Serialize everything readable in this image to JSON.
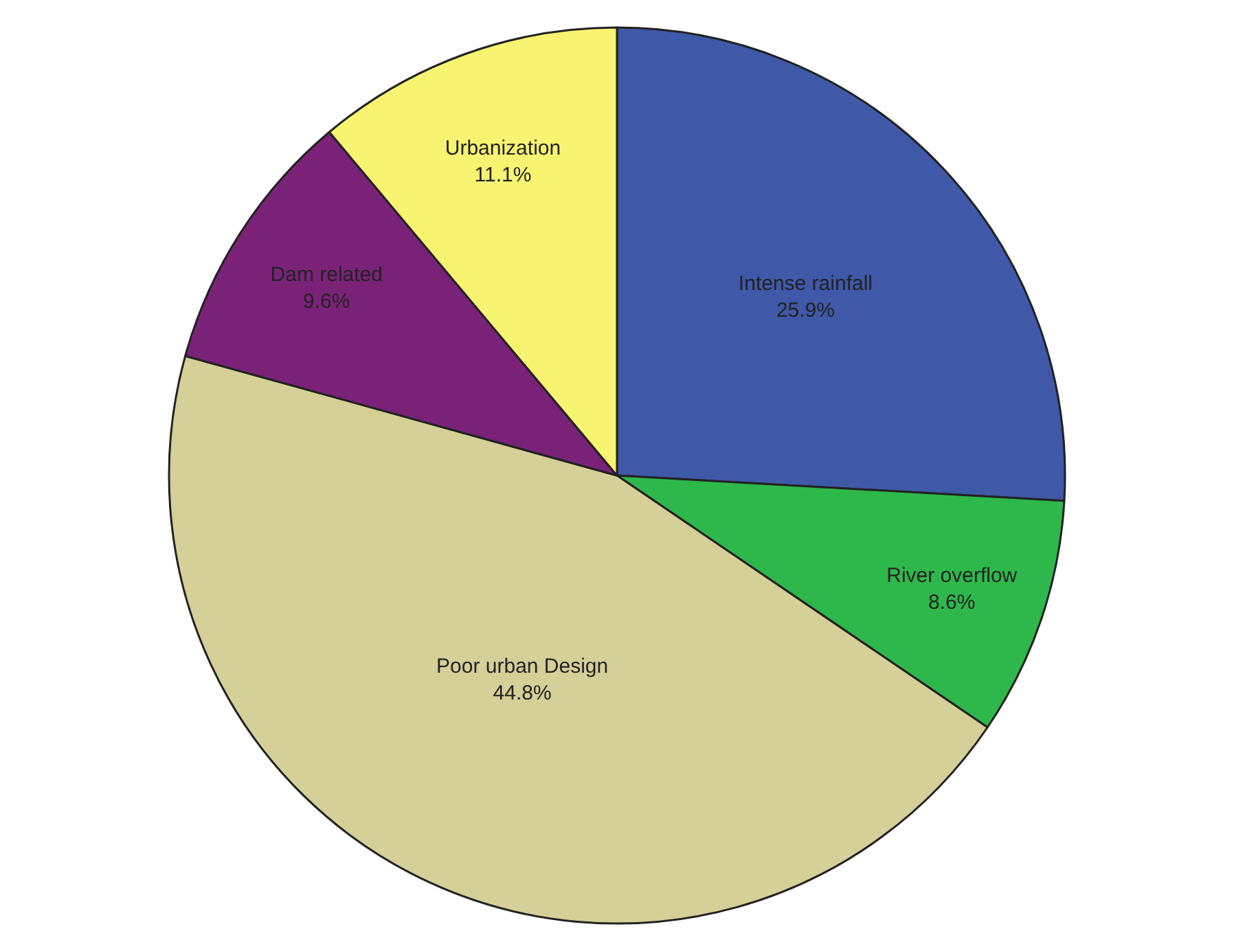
{
  "chart_data": {
    "type": "pie",
    "categories": [
      "Intense rainfall",
      "River overflow",
      "Poor urban Design",
      "Dam related",
      "Urbanization"
    ],
    "values": [
      25.9,
      8.6,
      44.8,
      9.6,
      11.1
    ],
    "value_labels": [
      "25.9%",
      "8.6%",
      "44.8%",
      "9.6%",
      "11.1%"
    ],
    "colors": [
      "#3f58a8",
      "#2eb84b",
      "#d5cf98",
      "#7a2278",
      "#f8f471"
    ],
    "legend": false
  }
}
